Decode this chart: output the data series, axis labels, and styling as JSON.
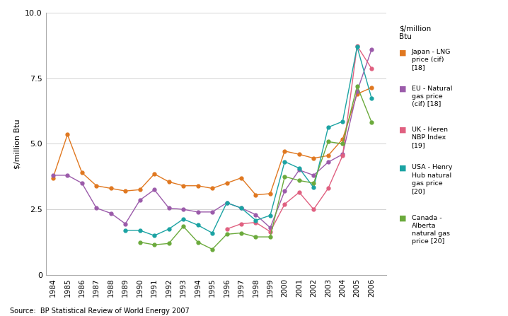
{
  "years": [
    1984,
    1985,
    1986,
    1987,
    1988,
    1989,
    1990,
    1991,
    1992,
    1993,
    1994,
    1995,
    1996,
    1997,
    1998,
    1999,
    2000,
    2001,
    2002,
    2003,
    2004,
    2005,
    2006
  ],
  "japan_lng": [
    3.7,
    5.35,
    3.9,
    3.4,
    3.3,
    3.2,
    3.25,
    3.85,
    3.55,
    3.4,
    3.4,
    3.3,
    3.5,
    3.7,
    3.05,
    3.1,
    4.72,
    4.6,
    4.45,
    4.55,
    5.18,
    6.9,
    7.14
  ],
  "eu_gas": [
    3.8,
    3.8,
    3.5,
    2.55,
    2.35,
    1.95,
    2.85,
    3.25,
    2.55,
    2.5,
    2.4,
    2.4,
    2.75,
    2.55,
    2.3,
    1.8,
    3.2,
    4.0,
    3.8,
    4.3,
    4.6,
    7.0,
    8.6
  ],
  "uk_nbp": [
    null,
    null,
    null,
    null,
    null,
    null,
    null,
    null,
    null,
    null,
    null,
    null,
    1.75,
    1.95,
    2.0,
    1.65,
    2.7,
    3.15,
    2.5,
    3.3,
    4.55,
    8.73,
    7.87
  ],
  "usa_henry": [
    null,
    null,
    null,
    null,
    null,
    1.7,
    1.7,
    1.5,
    1.75,
    2.13,
    1.9,
    1.6,
    2.75,
    2.55,
    2.08,
    2.27,
    4.32,
    4.07,
    3.33,
    5.63,
    5.85,
    8.7,
    6.73
  ],
  "canada_alberta": [
    null,
    null,
    null,
    null,
    null,
    null,
    1.25,
    1.15,
    1.2,
    1.85,
    1.25,
    0.98,
    1.55,
    1.6,
    1.45,
    1.45,
    3.75,
    3.6,
    3.5,
    5.08,
    5.0,
    7.2,
    5.82
  ],
  "colors": {
    "japan_lng": "#E07820",
    "eu_gas": "#9B5BAA",
    "uk_nbp": "#E06080",
    "usa_henry": "#1BA3A3",
    "canada_alberta": "#6BAA3C"
  },
  "legend_labels": {
    "japan_lng": "Japan - LNG\nprice (cif)\n[18]",
    "eu_gas": "EU - Natural\ngas price\n(cif) [18]",
    "uk_nbp": "UK - Heren\nNBP Index\n[19]",
    "usa_henry": "USA - Henry\nHub natural\ngas price\n[20]",
    "canada_alberta": "Canada -\nAlberta\nnatural gas\nprice [20]"
  },
  "ylabel": "$/million Btu",
  "legend_title": "$/million\nBtu",
  "source": "Source:  BP Statistical Review of World Energy 2007",
  "ylim": [
    0,
    10.0
  ],
  "yticks": [
    0.0,
    2.5,
    5.0,
    7.5,
    10.0
  ]
}
